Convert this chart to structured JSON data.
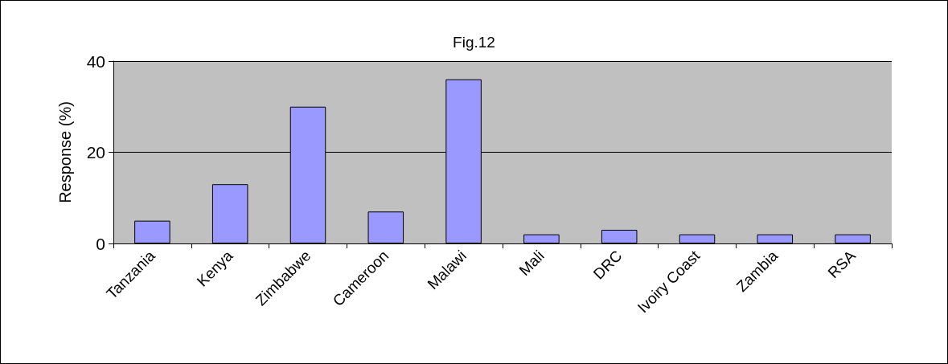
{
  "chart_data": {
    "type": "bar",
    "title": "Fig.12",
    "ylabel": "Response (%)",
    "categories": [
      "Tanzania",
      "Kenya",
      "Zimbabwe",
      "Cameroon",
      "Malawi",
      "Mali",
      "DRC",
      "Ivoiry Coast",
      "Zambia",
      "RSA"
    ],
    "values": [
      5,
      13,
      30,
      7,
      36,
      2,
      3,
      2,
      2,
      2
    ],
    "color": "#9999ff",
    "ylim": [
      0,
      40
    ],
    "yticks": [
      0,
      20,
      40
    ],
    "grid": "y"
  }
}
